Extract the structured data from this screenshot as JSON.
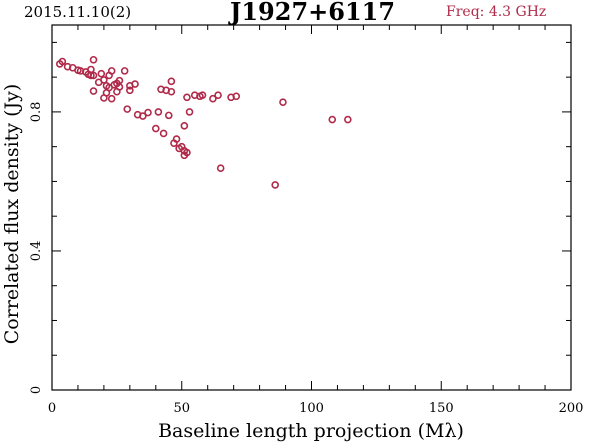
{
  "header": {
    "date": "2015.11.10(2)",
    "source": "J1927+6117",
    "freq": "Freq: 4.3 GHz"
  },
  "colors": {
    "points": "#b02a4a",
    "axes": "#000000"
  },
  "chart_data": {
    "type": "scatter",
    "title": "J1927+6117",
    "xlabel": "Baseline length projection (Mλ)",
    "ylabel": "Correlated flux density (Jy)",
    "xlim": [
      0,
      200
    ],
    "ylim": [
      0,
      1.05
    ],
    "xticks": [
      "0",
      "50",
      "100",
      "150",
      "200"
    ],
    "yticks": [
      "0",
      "0.4",
      "0.8"
    ],
    "grid": false,
    "x": [
      3,
      4,
      6,
      8,
      10,
      11,
      13,
      14,
      15,
      15,
      16,
      16,
      16,
      18,
      19,
      20,
      20,
      21,
      21,
      22,
      22,
      23,
      23,
      24,
      25,
      25,
      26,
      26,
      28,
      29,
      30,
      30,
      32,
      33,
      35,
      37,
      40,
      41,
      42,
      43,
      44,
      45,
      46,
      46,
      47,
      48,
      49,
      50,
      51,
      51,
      51,
      52,
      52,
      53,
      55,
      57,
      58,
      62,
      64,
      65,
      69,
      71,
      86,
      89,
      108,
      114
    ],
    "y": [
      0.938,
      0.945,
      0.93,
      0.927,
      0.92,
      0.918,
      0.915,
      0.908,
      0.905,
      0.922,
      0.95,
      0.86,
      0.905,
      0.885,
      0.91,
      0.892,
      0.84,
      0.855,
      0.875,
      0.905,
      0.87,
      0.838,
      0.918,
      0.878,
      0.858,
      0.882,
      0.872,
      0.89,
      0.918,
      0.808,
      0.862,
      0.875,
      0.88,
      0.792,
      0.788,
      0.798,
      0.752,
      0.8,
      0.865,
      0.738,
      0.862,
      0.79,
      0.858,
      0.888,
      0.71,
      0.722,
      0.695,
      0.7,
      0.76,
      0.688,
      0.675,
      0.683,
      0.842,
      0.8,
      0.848,
      0.845,
      0.848,
      0.838,
      0.848,
      0.638,
      0.842,
      0.845,
      0.59,
      0.828,
      0.778,
      0.778
    ]
  }
}
